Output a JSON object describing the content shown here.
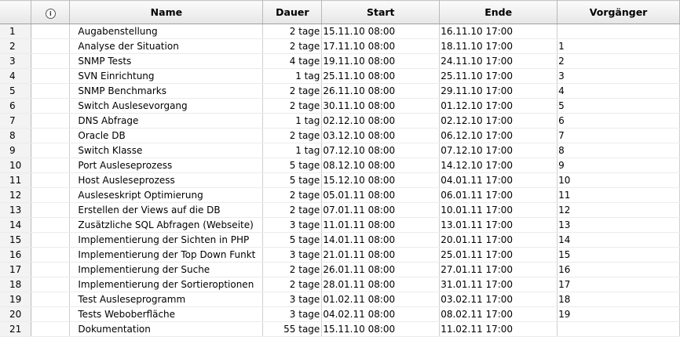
{
  "columns": {
    "indicator_icon": "info-icon",
    "name": "Name",
    "duration": "Dauer",
    "start": "Start",
    "end": "Ende",
    "predecessors": "Vorgänger"
  },
  "tasks": [
    {
      "id": "1",
      "name": "Augabenstellung",
      "duration": "2 tage",
      "start": "15.11.10 08:00",
      "end": "16.11.10 17:00",
      "pred": ""
    },
    {
      "id": "2",
      "name": "Analyse der Situation",
      "duration": "2 tage",
      "start": "17.11.10 08:00",
      "end": "18.11.10 17:00",
      "pred": "1"
    },
    {
      "id": "3",
      "name": "SNMP Tests",
      "duration": "4 tage",
      "start": "19.11.10 08:00",
      "end": "24.11.10 17:00",
      "pred": "2"
    },
    {
      "id": "4",
      "name": "SVN Einrichtung",
      "duration": "1 tag",
      "start": "25.11.10 08:00",
      "end": "25.11.10 17:00",
      "pred": "3"
    },
    {
      "id": "5",
      "name": "SNMP Benchmarks",
      "duration": "2 tage",
      "start": "26.11.10 08:00",
      "end": "29.11.10 17:00",
      "pred": "4"
    },
    {
      "id": "6",
      "name": "Switch Auslesevorgang",
      "duration": "2 tage",
      "start": "30.11.10 08:00",
      "end": "01.12.10 17:00",
      "pred": "5"
    },
    {
      "id": "7",
      "name": "DNS Abfrage",
      "duration": "1 tag",
      "start": "02.12.10 08:00",
      "end": "02.12.10 17:00",
      "pred": "6"
    },
    {
      "id": "8",
      "name": "Oracle DB",
      "duration": "2 tage",
      "start": "03.12.10 08:00",
      "end": "06.12.10 17:00",
      "pred": "7"
    },
    {
      "id": "9",
      "name": "Switch Klasse",
      "duration": "1 tag",
      "start": "07.12.10 08:00",
      "end": "07.12.10 17:00",
      "pred": "8"
    },
    {
      "id": "10",
      "name": "Port Ausleseprozess",
      "duration": "5 tage",
      "start": "08.12.10 08:00",
      "end": "14.12.10 17:00",
      "pred": "9"
    },
    {
      "id": "11",
      "name": "Host Ausleseprozess",
      "duration": "5 tage",
      "start": "15.12.10 08:00",
      "end": "04.01.11 17:00",
      "pred": "10"
    },
    {
      "id": "12",
      "name": "Ausleseskript Optimierung",
      "duration": "2 tage",
      "start": "05.01.11 08:00",
      "end": "06.01.11 17:00",
      "pred": "11"
    },
    {
      "id": "13",
      "name": "Erstellen der Views auf die DB",
      "duration": "2 tage",
      "start": "07.01.11 08:00",
      "end": "10.01.11 17:00",
      "pred": "12"
    },
    {
      "id": "14",
      "name": "Zusätzliche SQL Abfragen (Webseite)",
      "duration": "3 tage",
      "start": "11.01.11 08:00",
      "end": "13.01.11 17:00",
      "pred": "13"
    },
    {
      "id": "15",
      "name": "Implementierung der Sichten in PHP",
      "duration": "5 tage",
      "start": "14.01.11 08:00",
      "end": "20.01.11 17:00",
      "pred": "14"
    },
    {
      "id": "16",
      "name": "Implementierung der Top Down Funkt",
      "duration": "3 tage",
      "start": "21.01.11 08:00",
      "end": "25.01.11 17:00",
      "pred": "15"
    },
    {
      "id": "17",
      "name": "Implementierung der Suche",
      "duration": "2 tage",
      "start": "26.01.11 08:00",
      "end": "27.01.11 17:00",
      "pred": "16"
    },
    {
      "id": "18",
      "name": "Implementierung der Sortieroptionen",
      "duration": "2 tage",
      "start": "28.01.11 08:00",
      "end": "31.01.11 17:00",
      "pred": "17"
    },
    {
      "id": "19",
      "name": "Test Ausleseprogramm",
      "duration": "3 tage",
      "start": "01.02.11 08:00",
      "end": "03.02.11 17:00",
      "pred": "18"
    },
    {
      "id": "20",
      "name": "Tests Weboberfläche",
      "duration": "3 tage",
      "start": "04.02.11 08:00",
      "end": "08.02.11 17:00",
      "pred": "19"
    },
    {
      "id": "21",
      "name": "Dokumentation",
      "duration": "55 tage",
      "start": "15.11.10 08:00",
      "end": "11.02.11 17:00",
      "pred": ""
    }
  ]
}
